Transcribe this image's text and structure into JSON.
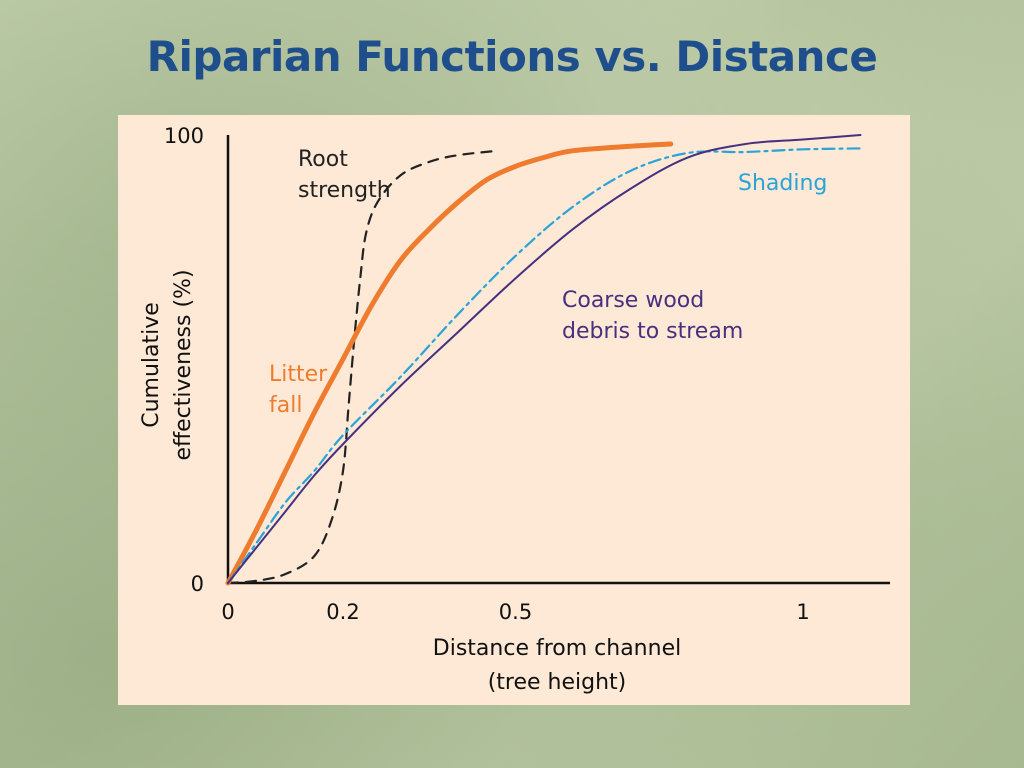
{
  "page": {
    "title": "Riparian Functions vs. Distance"
  },
  "colors": {
    "title": "#1f4e8c",
    "panel": "#fde9d5",
    "root_strength": "#222222",
    "litter_fall": "#ef7b2e",
    "shading": "#2aa3d8",
    "coarse_wood": "#46307f"
  },
  "chart_data": {
    "type": "line",
    "title": "",
    "xlabel_line1": "Distance from channel",
    "xlabel_line2": "(tree height)",
    "ylabel_line1": "Cumulative",
    "ylabel_line2": "effectiveness (%)",
    "xlim": [
      0,
      1.1
    ],
    "ylim": [
      0,
      100
    ],
    "x_ticks": [
      {
        "value": 0,
        "label": "0"
      },
      {
        "value": 0.2,
        "label": "0.2"
      },
      {
        "value": 0.5,
        "label": "0.5"
      },
      {
        "value": 1,
        "label": "1"
      }
    ],
    "y_ticks": [
      {
        "value": 0,
        "label": "0"
      },
      {
        "value": 100,
        "label": "100"
      }
    ],
    "grid": false,
    "legend": "none",
    "series": [
      {
        "key": "root_strength",
        "name_line1": "Root",
        "name_line2": "strength",
        "style": "dashed",
        "points": [
          [
            0,
            0
          ],
          [
            0.05,
            0.5
          ],
          [
            0.1,
            2
          ],
          [
            0.15,
            6
          ],
          [
            0.18,
            14
          ],
          [
            0.2,
            25
          ],
          [
            0.21,
            40
          ],
          [
            0.22,
            55
          ],
          [
            0.23,
            68
          ],
          [
            0.24,
            78
          ],
          [
            0.26,
            85
          ],
          [
            0.3,
            91
          ],
          [
            0.35,
            94
          ],
          [
            0.4,
            95.5
          ],
          [
            0.47,
            96.5
          ]
        ]
      },
      {
        "key": "litter_fall",
        "name_line1": "Litter",
        "name_line2": "fall",
        "style": "thick",
        "points": [
          [
            0,
            0
          ],
          [
            0.05,
            12
          ],
          [
            0.1,
            25
          ],
          [
            0.15,
            38
          ],
          [
            0.2,
            50
          ],
          [
            0.25,
            62
          ],
          [
            0.3,
            72
          ],
          [
            0.35,
            79
          ],
          [
            0.4,
            85
          ],
          [
            0.45,
            90
          ],
          [
            0.5,
            93
          ],
          [
            0.55,
            95
          ],
          [
            0.6,
            96.5
          ],
          [
            0.7,
            97.5
          ],
          [
            0.77,
            98
          ]
        ]
      },
      {
        "key": "shading",
        "name_line1": "Shading",
        "name_line2": "",
        "style": "dashdot",
        "points": [
          [
            0,
            0
          ],
          [
            0.05,
            9
          ],
          [
            0.1,
            18
          ],
          [
            0.15,
            25
          ],
          [
            0.2,
            33
          ],
          [
            0.3,
            46
          ],
          [
            0.4,
            60
          ],
          [
            0.5,
            73
          ],
          [
            0.6,
            84
          ],
          [
            0.7,
            92
          ],
          [
            0.8,
            96
          ],
          [
            0.9,
            96.2
          ],
          [
            1.0,
            96.8
          ],
          [
            1.1,
            97
          ]
        ]
      },
      {
        "key": "coarse_wood",
        "name_line1": "Coarse wood",
        "name_line2": "debris to stream",
        "style": "thin",
        "points": [
          [
            0,
            0
          ],
          [
            0.05,
            8
          ],
          [
            0.1,
            16
          ],
          [
            0.15,
            24
          ],
          [
            0.2,
            31
          ],
          [
            0.3,
            44
          ],
          [
            0.4,
            56
          ],
          [
            0.5,
            68
          ],
          [
            0.6,
            79
          ],
          [
            0.7,
            88
          ],
          [
            0.8,
            95
          ],
          [
            0.9,
            98
          ],
          [
            1.0,
            99
          ],
          [
            1.1,
            100
          ]
        ]
      }
    ]
  }
}
